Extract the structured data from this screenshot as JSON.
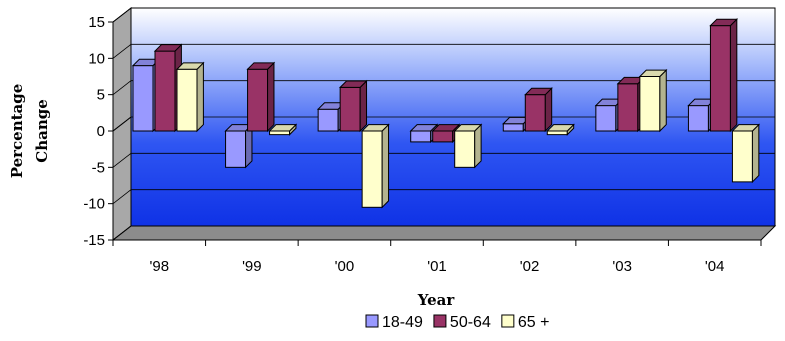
{
  "chart_data": {
    "type": "bar",
    "style": "3d-clustered-column",
    "categories": [
      "'98",
      "'99",
      "'00",
      "'01",
      "'02",
      "'03",
      "'04"
    ],
    "series": [
      {
        "name": "18-49",
        "values": [
          9,
          -5,
          3,
          -1.5,
          1,
          3.5,
          3.5
        ],
        "color": "#9999ff"
      },
      {
        "name": "50-64",
        "values": [
          11,
          8.5,
          6,
          -1.5,
          5,
          6.5,
          14.5
        ],
        "color": "#993366"
      },
      {
        "name": "65 +",
        "values": [
          8.5,
          -0.5,
          -10.5,
          -5,
          -0.5,
          7.5,
          -7
        ],
        "color": "#ffffcc"
      }
    ],
    "yticks": [
      15,
      10,
      5,
      0,
      -5,
      -10,
      -15
    ],
    "ylim": [
      -15,
      15
    ],
    "xlabel": "Year",
    "ylabel": [
      "Percentage",
      "Change"
    ],
    "legend_position": "bottom",
    "grid": true,
    "background": "blue-gradient"
  }
}
